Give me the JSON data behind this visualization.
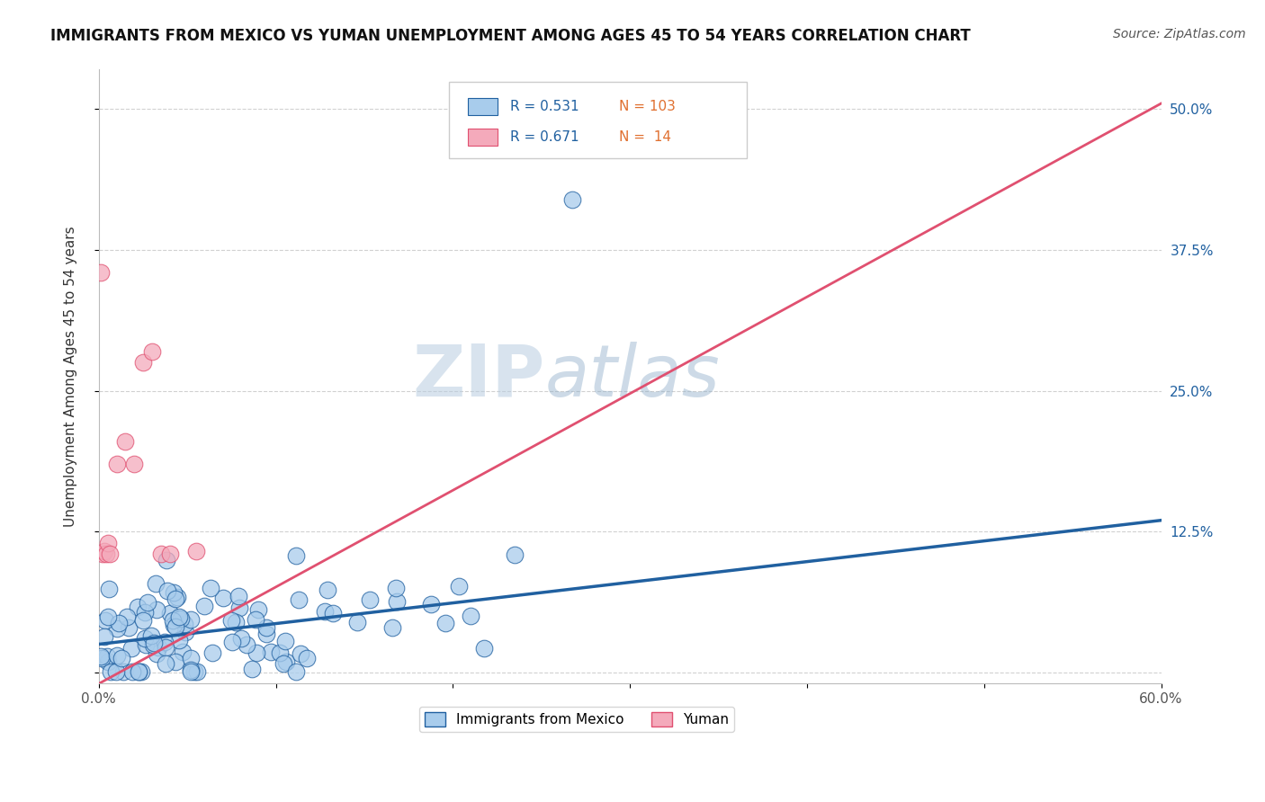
{
  "title": "IMMIGRANTS FROM MEXICO VS YUMAN UNEMPLOYMENT AMONG AGES 45 TO 54 YEARS CORRELATION CHART",
  "source": "Source: ZipAtlas.com",
  "xlabel": "",
  "ylabel": "Unemployment Among Ages 45 to 54 years",
  "xlim": [
    0.0,
    0.6
  ],
  "ylim": [
    -0.01,
    0.535
  ],
  "ytick_labels": [
    "",
    "12.5%",
    "25.0%",
    "37.5%",
    "50.0%"
  ],
  "yticks": [
    0.0,
    0.125,
    0.25,
    0.375,
    0.5
  ],
  "blue_R": 0.531,
  "blue_N": 103,
  "pink_R": 0.671,
  "pink_N": 14,
  "blue_color": "#A8CCEC",
  "pink_color": "#F4AABB",
  "blue_line_color": "#2060A0",
  "pink_line_color": "#E05070",
  "watermark_zip": "ZIP",
  "watermark_atlas": "atlas",
  "background_color": "#ffffff",
  "grid_color": "#cccccc",
  "blue_line_x0": 0.0,
  "blue_line_x1": 0.6,
  "blue_line_y0": 0.025,
  "blue_line_y1": 0.135,
  "pink_line_x0": 0.0,
  "pink_line_x1": 0.6,
  "pink_line_y0": -0.01,
  "pink_line_y1": 0.505,
  "legend_R_color": "#2060A0",
  "legend_N_color": "#E07030",
  "title_color": "#111111",
  "source_color": "#555555",
  "ylabel_color": "#333333",
  "tick_color": "#555555"
}
